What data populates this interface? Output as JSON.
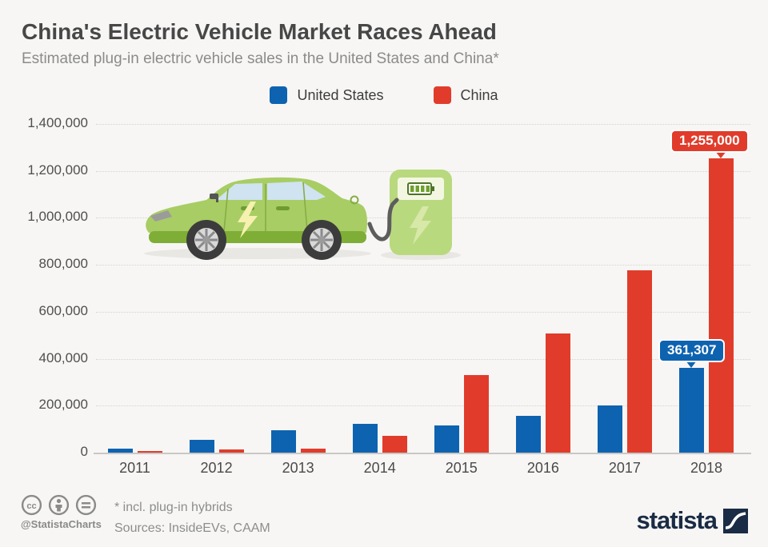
{
  "header": {
    "title": "China's Electric Vehicle Market Races Ahead",
    "subtitle": "Estimated plug-in electric vehicle sales in the United States and China*"
  },
  "legend": [
    {
      "label": "United States",
      "color": "#0e63b0"
    },
    {
      "label": "China",
      "color": "#e13c2b"
    }
  ],
  "chart_data": {
    "type": "bar",
    "title": "China's Electric Vehicle Market Races Ahead",
    "subtitle": "Estimated plug-in electric vehicle sales in the United States and China*",
    "categories": [
      "2011",
      "2012",
      "2013",
      "2014",
      "2015",
      "2016",
      "2017",
      "2018"
    ],
    "series": [
      {
        "name": "United States",
        "color": "#0e63b0",
        "values": [
          18000,
          53000,
          97000,
          122000,
          115000,
          157000,
          200000,
          361307
        ]
      },
      {
        "name": "China",
        "color": "#e13c2b",
        "values": [
          6000,
          13000,
          18000,
          73000,
          331000,
          507000,
          777000,
          1255000
        ]
      }
    ],
    "xlabel": "",
    "ylabel": "",
    "ylim": [
      0,
      1400000
    ],
    "yticks": [
      {
        "value": 0,
        "label": "0"
      },
      {
        "value": 200000,
        "label": "200,000"
      },
      {
        "value": 400000,
        "label": "400,000"
      },
      {
        "value": 600000,
        "label": "600,000"
      },
      {
        "value": 800000,
        "label": "800,000"
      },
      {
        "value": 1000000,
        "label": "1,000,000"
      },
      {
        "value": 1200000,
        "label": "1,200,000"
      },
      {
        "value": 1400000,
        "label": "1,400,000"
      }
    ],
    "grid": "horizontal-dotted",
    "legend_position": "top",
    "annotations": [
      {
        "series": "United States",
        "category": "2018",
        "label": "361,307"
      },
      {
        "series": "China",
        "category": "2018",
        "label": "1,255,000"
      }
    ]
  },
  "illustration": {
    "name": "green electric car charging at station"
  },
  "footer": {
    "handle": "@StatistaCharts",
    "footnote": "* incl. plug-in hybrids",
    "sources": "Sources: InsideEVs, CAAM",
    "brand": "statista"
  },
  "colors": {
    "background": "#f7f6f4",
    "title": "#474747",
    "subtitle": "#8b8b8b",
    "axis_text": "#4f4f4f",
    "us_blue": "#0e63b0",
    "china_red": "#e13c2b",
    "brand_navy": "#1a2b45",
    "footer_gray": "#8a8a8a"
  }
}
